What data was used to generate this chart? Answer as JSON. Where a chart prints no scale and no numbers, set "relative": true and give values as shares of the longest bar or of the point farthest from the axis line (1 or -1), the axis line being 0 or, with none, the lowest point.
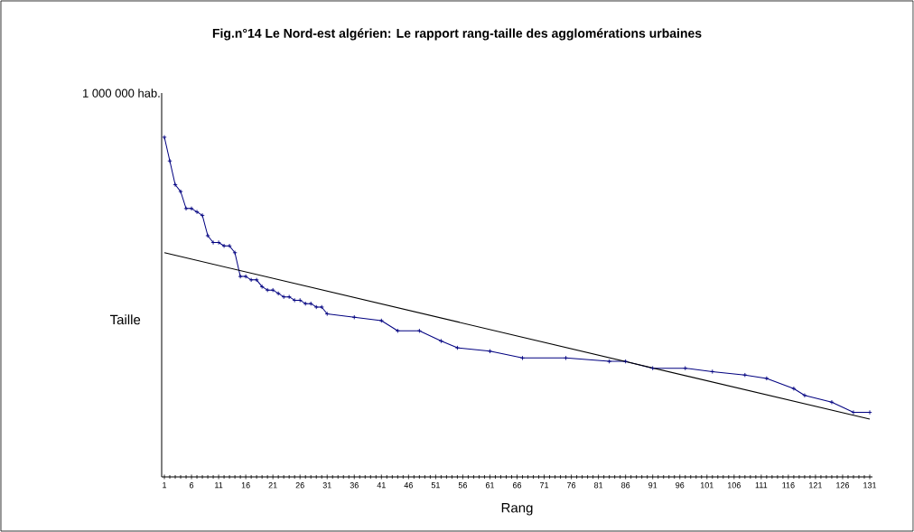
{
  "chart_data": {
    "type": "line",
    "title": "Fig.n°14 Le Nord-est algérien: Le rapport rang-taille des agglomérations urbaines",
    "xlabel": "Rang",
    "ylabel": "Taille",
    "annotations": [
      "1 000 000 hab."
    ],
    "relative": true,
    "marker": "cross",
    "grid": false,
    "xlim": [
      0.5,
      131.5
    ],
    "xticks": [
      1,
      6,
      11,
      16,
      21,
      26,
      31,
      36,
      41,
      46,
      51,
      56,
      61,
      66,
      71,
      76,
      81,
      86,
      91,
      96,
      101,
      106,
      111,
      116,
      121,
      126,
      131
    ],
    "series": [
      {
        "color": "#000080",
        "x": [
          1,
          2,
          3,
          4,
          5,
          6,
          7,
          8,
          9,
          10,
          11,
          12,
          13,
          14,
          15,
          16,
          17,
          18,
          19,
          20,
          21,
          22,
          23,
          24,
          25,
          26,
          27,
          28,
          29,
          30,
          31,
          36,
          41,
          44,
          48,
          52,
          55,
          61,
          67,
          75,
          83,
          86,
          91,
          97,
          102,
          108,
          112,
          117,
          119,
          124,
          128,
          131
        ],
        "values": [
          1.0,
          0.93,
          0.86,
          0.84,
          0.79,
          0.79,
          0.78,
          0.77,
          0.71,
          0.69,
          0.69,
          0.68,
          0.68,
          0.66,
          0.59,
          0.59,
          0.58,
          0.58,
          0.56,
          0.55,
          0.55,
          0.54,
          0.53,
          0.53,
          0.52,
          0.52,
          0.51,
          0.51,
          0.5,
          0.5,
          0.48,
          0.47,
          0.46,
          0.43,
          0.43,
          0.4,
          0.38,
          0.37,
          0.35,
          0.35,
          0.34,
          0.34,
          0.32,
          0.32,
          0.31,
          0.3,
          0.29,
          0.26,
          0.24,
          0.22,
          0.19,
          0.19
        ]
      },
      {
        "type": "line",
        "color": "#000000",
        "marker": "none",
        "x": [
          1,
          131
        ],
        "values": [
          0.66,
          0.17
        ]
      }
    ]
  }
}
